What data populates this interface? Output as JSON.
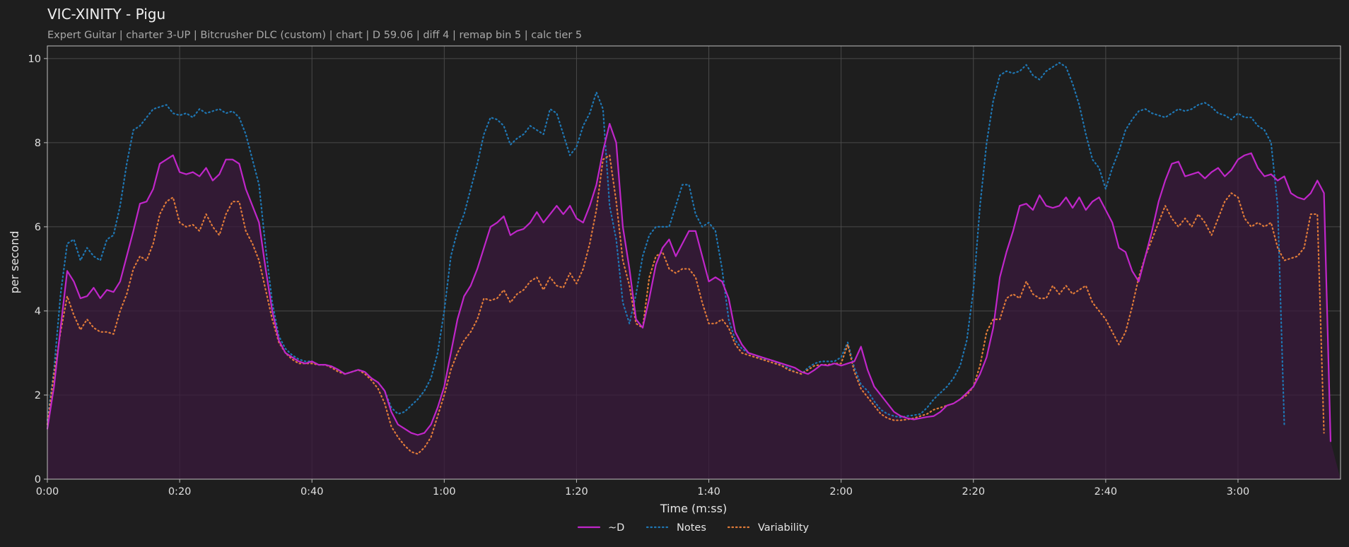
{
  "chart_data": {
    "type": "line",
    "title": "VIC-XINITY - Pigu",
    "subtitle": "Expert Guitar  |  charter 3-UP  |  Bitcrusher DLC (custom)  |  chart  |  D 59.06  |  diff 4  |  remap bin 5  |  calc tier 5",
    "xlabel": "Time (m:ss)",
    "ylabel": "per second",
    "x_ticks": [
      "0:00",
      "0:20",
      "0:40",
      "1:00",
      "1:20",
      "1:40",
      "2:00",
      "2:20",
      "2:40",
      "3:00"
    ],
    "y_ticks": [
      "0",
      "2",
      "4",
      "6",
      "8",
      "10"
    ],
    "xlim_seconds": [
      0,
      195.5
    ],
    "ylim": [
      0,
      10.3
    ],
    "grid": true,
    "legend_position": "bottom-center",
    "x_seconds": [
      0,
      1,
      2,
      3,
      4,
      5,
      6,
      7,
      8,
      9,
      10,
      11,
      12,
      13,
      14,
      15,
      16,
      17,
      18,
      19,
      20,
      21,
      22,
      23,
      24,
      25,
      26,
      27,
      28,
      29,
      30,
      31,
      32,
      33,
      34,
      35,
      36,
      37,
      38,
      39,
      40,
      41,
      42,
      43,
      44,
      45,
      46,
      47,
      48,
      49,
      50,
      51,
      52,
      53,
      54,
      55,
      56,
      57,
      58,
      59,
      60,
      61,
      62,
      63,
      64,
      65,
      66,
      67,
      68,
      69,
      70,
      71,
      72,
      73,
      74,
      75,
      76,
      77,
      78,
      79,
      80,
      81,
      82,
      83,
      84,
      85,
      86,
      87,
      88,
      89,
      90,
      91,
      92,
      93,
      94,
      95,
      96,
      97,
      98,
      99,
      100,
      101,
      102,
      103,
      104,
      105,
      106,
      107,
      108,
      109,
      110,
      111,
      112,
      113,
      114,
      115,
      116,
      117,
      118,
      119,
      120,
      121,
      122,
      123,
      124,
      125,
      126,
      127,
      128,
      129,
      130,
      131,
      132,
      133,
      134,
      135,
      136,
      137,
      138,
      139,
      140,
      141,
      142,
      143,
      144,
      145,
      146,
      147,
      148,
      149,
      150,
      151,
      152,
      153,
      154,
      155,
      156,
      157,
      158,
      159,
      160,
      161,
      162,
      163,
      164,
      165,
      166,
      167,
      168,
      169,
      170,
      171,
      172,
      173,
      174,
      175,
      176,
      177,
      178,
      179,
      180,
      181,
      182,
      183,
      184,
      185,
      186,
      187,
      188,
      189,
      190,
      191,
      192,
      193,
      194,
      195,
      195.5
    ],
    "series": [
      {
        "name": "~D",
        "color": "#c026c9",
        "style": "solid",
        "values": [
          1.2,
          2.2,
          3.6,
          4.95,
          4.7,
          4.3,
          4.35,
          4.55,
          4.3,
          4.5,
          4.45,
          4.7,
          5.3,
          5.9,
          6.55,
          6.6,
          6.9,
          7.5,
          7.6,
          7.7,
          7.3,
          7.25,
          7.3,
          7.2,
          7.4,
          7.1,
          7.25,
          7.6,
          7.6,
          7.5,
          6.9,
          6.5,
          6.1,
          5.0,
          4.0,
          3.3,
          3.0,
          2.9,
          2.8,
          2.75,
          2.8,
          2.72,
          2.72,
          2.68,
          2.6,
          2.5,
          2.55,
          2.6,
          2.55,
          2.4,
          2.3,
          2.1,
          1.6,
          1.3,
          1.2,
          1.1,
          1.05,
          1.1,
          1.3,
          1.7,
          2.2,
          3.0,
          3.8,
          4.35,
          4.6,
          5.0,
          5.5,
          6.0,
          6.1,
          6.25,
          5.8,
          5.9,
          5.95,
          6.1,
          6.35,
          6.1,
          6.3,
          6.5,
          6.3,
          6.5,
          6.2,
          6.1,
          6.5,
          7.0,
          7.8,
          8.45,
          8.0,
          6.0,
          5.0,
          3.8,
          3.6,
          4.3,
          5.1,
          5.5,
          5.7,
          5.3,
          5.6,
          5.9,
          5.9,
          5.3,
          4.7,
          4.8,
          4.7,
          4.3,
          3.5,
          3.2,
          3.0,
          2.95,
          2.9,
          2.85,
          2.8,
          2.75,
          2.7,
          2.65,
          2.55,
          2.5,
          2.6,
          2.72,
          2.7,
          2.75,
          2.7,
          2.75,
          2.8,
          3.15,
          2.6,
          2.2,
          2.0,
          1.8,
          1.6,
          1.5,
          1.45,
          1.42,
          1.45,
          1.48,
          1.5,
          1.6,
          1.75,
          1.8,
          1.9,
          2.05,
          2.2,
          2.5,
          2.9,
          3.6,
          4.8,
          5.4,
          5.9,
          6.5,
          6.55,
          6.4,
          6.75,
          6.5,
          6.45,
          6.5,
          6.7,
          6.45,
          6.7,
          6.4,
          6.6,
          6.7,
          6.4,
          6.1,
          5.5,
          5.4,
          4.95,
          4.7,
          5.3,
          5.9,
          6.6,
          7.1,
          7.5,
          7.55,
          7.2,
          7.25,
          7.3,
          7.15,
          7.3,
          7.4,
          7.2,
          7.35,
          7.6,
          7.7,
          7.75,
          7.4,
          7.2,
          7.25,
          7.1,
          7.2,
          6.8,
          6.7,
          6.65,
          6.8,
          7.1,
          6.8,
          0.9
        ]
      },
      {
        "name": "Notes",
        "color": "#1f77b4",
        "style": "dotted",
        "values": [
          1.4,
          2.6,
          4.4,
          5.6,
          5.7,
          5.2,
          5.5,
          5.3,
          5.2,
          5.7,
          5.8,
          6.5,
          7.5,
          8.3,
          8.4,
          8.6,
          8.8,
          8.85,
          8.9,
          8.7,
          8.65,
          8.7,
          8.6,
          8.8,
          8.7,
          8.75,
          8.8,
          8.7,
          8.75,
          8.6,
          8.2,
          7.6,
          7.0,
          5.5,
          4.2,
          3.4,
          3.1,
          2.95,
          2.85,
          2.8,
          2.8,
          2.72,
          2.72,
          2.68,
          2.6,
          2.5,
          2.55,
          2.6,
          2.55,
          2.4,
          2.3,
          2.1,
          1.7,
          1.55,
          1.6,
          1.75,
          1.9,
          2.1,
          2.4,
          3.0,
          4.0,
          5.3,
          5.9,
          6.3,
          6.9,
          7.5,
          8.2,
          8.6,
          8.55,
          8.4,
          7.95,
          8.1,
          8.2,
          8.4,
          8.3,
          8.2,
          8.8,
          8.7,
          8.2,
          7.7,
          7.9,
          8.4,
          8.7,
          9.2,
          8.8,
          6.5,
          5.7,
          4.2,
          3.7,
          4.4,
          5.3,
          5.8,
          6.0,
          6.0,
          6.0,
          6.5,
          7.0,
          7.0,
          6.3,
          6.0,
          6.1,
          5.9,
          5.0,
          3.8,
          3.3,
          3.1,
          3.0,
          2.95,
          2.85,
          2.85,
          2.8,
          2.7,
          2.65,
          2.55,
          2.5,
          2.65,
          2.75,
          2.8,
          2.8,
          2.8,
          2.9,
          3.25,
          2.65,
          2.25,
          2.1,
          1.85,
          1.65,
          1.55,
          1.5,
          1.47,
          1.5,
          1.52,
          1.55,
          1.7,
          1.9,
          2.05,
          2.2,
          2.4,
          2.7,
          3.3,
          4.5,
          6.5,
          8.0,
          9.0,
          9.6,
          9.7,
          9.65,
          9.7,
          9.85,
          9.6,
          9.5,
          9.7,
          9.8,
          9.9,
          9.8,
          9.4,
          8.9,
          8.2,
          7.6,
          7.4,
          6.9,
          7.4,
          7.8,
          8.3,
          8.55,
          8.75,
          8.8,
          8.7,
          8.65,
          8.6,
          8.7,
          8.8,
          8.75,
          8.8,
          8.9,
          8.95,
          8.85,
          8.7,
          8.65,
          8.55,
          8.7,
          8.6,
          8.6,
          8.4,
          8.3,
          8.0,
          6.5,
          1.3
        ]
      },
      {
        "name": "Variability",
        "color": "#e07b39",
        "style": "dotted",
        "values": [
          1.3,
          2.5,
          3.5,
          4.35,
          3.9,
          3.55,
          3.8,
          3.6,
          3.5,
          3.5,
          3.45,
          4.0,
          4.4,
          5.0,
          5.3,
          5.2,
          5.6,
          6.3,
          6.6,
          6.7,
          6.1,
          6.0,
          6.05,
          5.9,
          6.3,
          6.0,
          5.8,
          6.3,
          6.6,
          6.6,
          5.9,
          5.6,
          5.2,
          4.5,
          3.8,
          3.25,
          3.0,
          2.85,
          2.75,
          2.75,
          2.75,
          2.72,
          2.72,
          2.65,
          2.55,
          2.5,
          2.55,
          2.6,
          2.5,
          2.35,
          2.15,
          1.8,
          1.25,
          1.0,
          0.8,
          0.65,
          0.6,
          0.75,
          1.0,
          1.5,
          2.0,
          2.6,
          3.0,
          3.3,
          3.5,
          3.8,
          4.3,
          4.25,
          4.3,
          4.5,
          4.2,
          4.4,
          4.5,
          4.7,
          4.8,
          4.5,
          4.8,
          4.6,
          4.55,
          4.9,
          4.65,
          5.0,
          5.6,
          6.4,
          7.6,
          7.7,
          6.6,
          5.2,
          4.6,
          3.7,
          3.6,
          4.8,
          5.3,
          5.4,
          5.0,
          4.9,
          5.0,
          5.0,
          4.8,
          4.2,
          3.7,
          3.7,
          3.8,
          3.6,
          3.2,
          3.0,
          2.95,
          2.9,
          2.85,
          2.8,
          2.75,
          2.7,
          2.6,
          2.55,
          2.5,
          2.6,
          2.7,
          2.72,
          2.72,
          2.75,
          2.75,
          3.2,
          2.55,
          2.15,
          1.95,
          1.75,
          1.55,
          1.45,
          1.4,
          1.4,
          1.42,
          1.45,
          1.5,
          1.55,
          1.65,
          1.7,
          1.75,
          1.8,
          1.9,
          2.0,
          2.2,
          2.7,
          3.5,
          3.8,
          3.8,
          4.3,
          4.4,
          4.3,
          4.7,
          4.4,
          4.3,
          4.3,
          4.6,
          4.4,
          4.6,
          4.4,
          4.5,
          4.6,
          4.2,
          4.0,
          3.8,
          3.5,
          3.2,
          3.5,
          4.1,
          4.8,
          5.3,
          5.7,
          6.1,
          6.5,
          6.2,
          6.0,
          6.2,
          6.0,
          6.3,
          6.1,
          5.8,
          6.2,
          6.6,
          6.8,
          6.7,
          6.2,
          6.0,
          6.1,
          6.0,
          6.1,
          5.5,
          5.2,
          5.25,
          5.3,
          5.5,
          6.3,
          6.3,
          1.1
        ]
      }
    ]
  }
}
